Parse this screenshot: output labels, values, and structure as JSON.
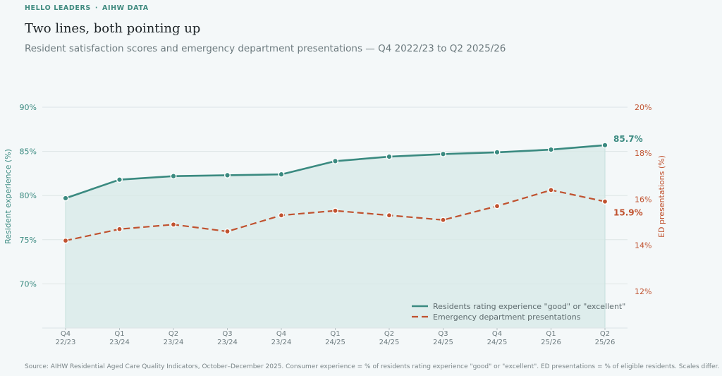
{
  "header": {
    "eyebrow_left": "HELLO LEADERS",
    "eyebrow_sep": "·",
    "eyebrow_right": "AIHW DATA",
    "title": "Two lines, both pointing up",
    "subtitle": "Resident satisfaction scores and emergency department presentations — Q4 2022/23 to Q2 2025/26"
  },
  "footer": {
    "source": "Source: AIHW Residential Aged Care Quality Indicators, October–December 2025. Consumer experience = % of residents rating experience \"good\" or \"excellent\". ED presentations = % of eligible residents. Scales differ."
  },
  "colors": {
    "teal": "#3a8a80",
    "orange": "#c0522f",
    "grid": "#dde5e6",
    "area": "#d7eae7"
  },
  "chart_data": {
    "type": "line",
    "x_quarters": [
      "Q4",
      "Q1",
      "Q2",
      "Q3",
      "Q4",
      "Q1",
      "Q2",
      "Q3",
      "Q4",
      "Q1",
      "Q2"
    ],
    "x_years": [
      "22/23",
      "23/24",
      "23/24",
      "23/24",
      "23/24",
      "24/25",
      "24/25",
      "24/25",
      "24/25",
      "25/26",
      "25/26"
    ],
    "series": [
      {
        "name": "Residents rating experience \"good\" or \"excellent\"",
        "axis": "left",
        "style": "solid",
        "values": [
          79.7,
          81.8,
          82.2,
          82.3,
          82.4,
          83.9,
          84.4,
          84.7,
          84.9,
          85.2,
          85.7
        ],
        "end_label": "85.7%"
      },
      {
        "name": "Emergency department presentations",
        "axis": "right",
        "style": "dashed",
        "values": [
          14.2,
          14.7,
          14.9,
          14.6,
          15.3,
          15.5,
          15.3,
          15.1,
          15.7,
          16.4,
          15.9
        ],
        "end_label": "15.9%"
      }
    ],
    "y_left": {
      "label": "Resident experience (%)",
      "lim": [
        65,
        90
      ],
      "ticks": [
        70,
        75,
        80,
        85,
        90
      ],
      "tick_labels": [
        "70%",
        "75%",
        "80%",
        "85%",
        "90%"
      ]
    },
    "y_right": {
      "label": "ED presentations (%)",
      "lim": [
        10.4,
        20
      ],
      "ticks": [
        12,
        14,
        16,
        18,
        20
      ],
      "tick_labels": [
        "12%",
        "14%",
        "16%",
        "18%",
        "20%"
      ]
    },
    "grid": true,
    "legend": "bottom-right"
  }
}
